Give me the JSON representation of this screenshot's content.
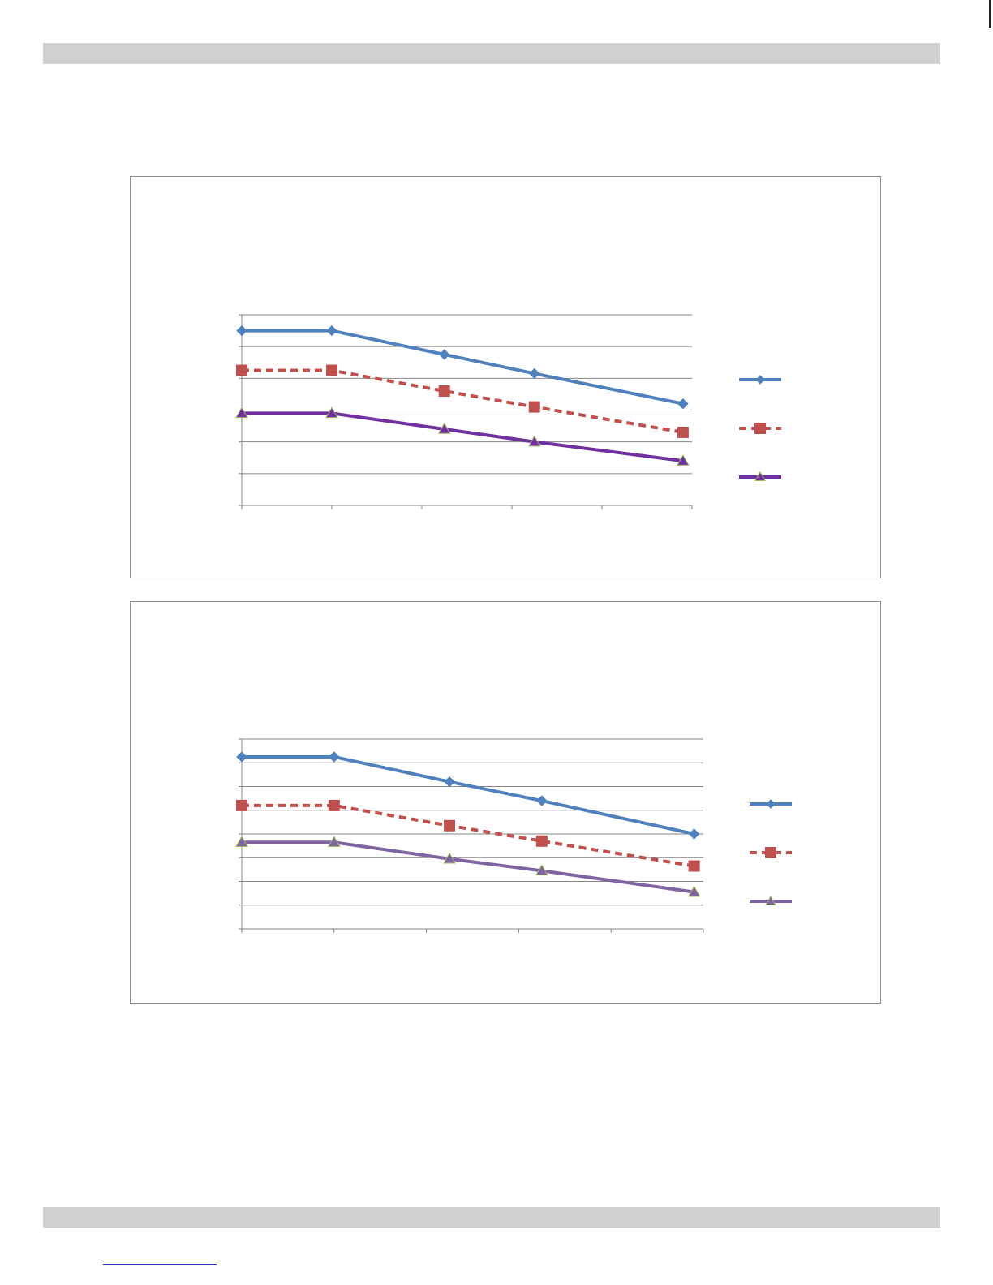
{
  "colors": {
    "series1": "#4f81bd",
    "series2": "#c0504d",
    "series3": "#7030a0",
    "series3_alt": "#8064a2",
    "triangle_edge": "#9bbb59",
    "grid": "#868686",
    "frame": "#8c8c8c",
    "band": "#d0d0d0"
  },
  "chart_data": [
    {
      "type": "line",
      "categories": [
        "",
        "",
        "",
        "",
        ""
      ],
      "x": [
        0,
        1,
        2.25,
        3.25,
        4.9
      ],
      "xlim": [
        0,
        5
      ],
      "ylim": [
        0,
        6
      ],
      "grid": true,
      "legend": "right",
      "series": [
        {
          "values": [
            5.5,
            5.5,
            4.75,
            4.15,
            3.2
          ],
          "style": "solid",
          "marker": "diamond",
          "color": "#4f81bd"
        },
        {
          "values": [
            4.25,
            4.25,
            3.6,
            3.1,
            2.3
          ],
          "style": "dashed",
          "marker": "square",
          "color": "#c0504d"
        },
        {
          "values": [
            2.9,
            2.9,
            2.4,
            2.0,
            1.4
          ],
          "style": "solid",
          "marker": "triangle",
          "color": "#7030a0"
        }
      ]
    },
    {
      "type": "line",
      "categories": [
        "",
        "",
        "",
        "",
        ""
      ],
      "x": [
        0,
        1,
        2.25,
        3.25,
        4.9
      ],
      "xlim": [
        0,
        5
      ],
      "ylim": [
        0,
        8
      ],
      "grid": true,
      "legend": "right",
      "series": [
        {
          "values": [
            7.25,
            7.25,
            6.2,
            5.4,
            4.0
          ],
          "style": "solid",
          "marker": "diamond",
          "color": "#4f81bd"
        },
        {
          "values": [
            5.2,
            5.2,
            4.35,
            3.7,
            2.65
          ],
          "style": "dashed",
          "marker": "square",
          "color": "#c0504d"
        },
        {
          "values": [
            3.65,
            3.65,
            2.95,
            2.45,
            1.55
          ],
          "style": "solid",
          "marker": "triangle",
          "color": "#8064a2"
        }
      ]
    }
  ]
}
